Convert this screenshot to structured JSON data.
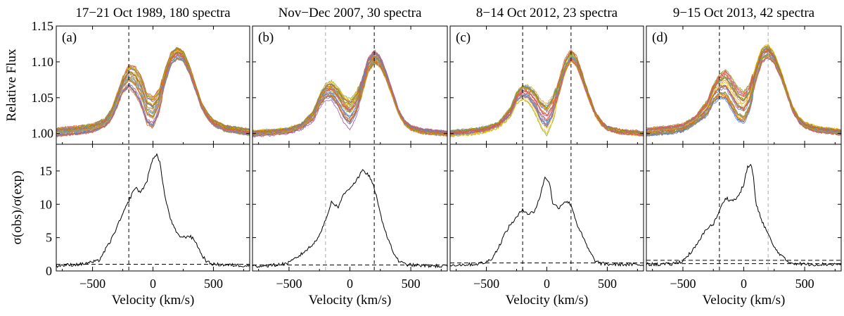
{
  "chart_data": {
    "type": "line",
    "figure": "Multi-epoch line profiles and variability ratio",
    "ylabel_top": "Relative Flux",
    "ylabel_bottom": "σ(obs)/σ(exp)",
    "xlabel": "Velocity (km/s)",
    "xlim": [
      -800,
      800
    ],
    "ylim_top": [
      0.985,
      1.15
    ],
    "ylim_bottom": [
      0,
      19
    ],
    "xticks": [
      -500,
      0,
      500
    ],
    "xtick_labels": [
      "−500",
      "0",
      "500"
    ],
    "yticks_top": [
      1.0,
      1.05,
      1.1,
      1.15
    ],
    "yticks_top_labels": [
      "1.00",
      "1.05",
      "1.10",
      "1.15"
    ],
    "yticks_bottom": [
      0,
      5,
      10,
      15
    ],
    "yticks_bottom_labels": [
      "0",
      "5",
      "10",
      "15"
    ],
    "marker_velocities": [
      -200,
      200
    ],
    "panels": [
      {
        "label": "(a)",
        "title": "17−21 Oct 1989, 180 spectra",
        "n_overplot": 30,
        "flux_mean": {
          "v": [
            -800,
            -600,
            -500,
            -400,
            -350,
            -300,
            -250,
            -200,
            -150,
            -100,
            -50,
            0,
            50,
            100,
            150,
            200,
            250,
            300,
            350,
            400,
            450,
            500,
            600,
            800
          ],
          "f": [
            1.002,
            1.005,
            1.008,
            1.015,
            1.025,
            1.045,
            1.068,
            1.08,
            1.075,
            1.06,
            1.035,
            1.03,
            1.045,
            1.08,
            1.105,
            1.112,
            1.108,
            1.09,
            1.065,
            1.04,
            1.025,
            1.015,
            1.007,
            1.002
          ]
        },
        "flux_spread": {
          "v": [
            -400,
            -250,
            -150,
            -50,
            0,
            50,
            150,
            200,
            300,
            400
          ],
          "s": [
            0.004,
            0.008,
            0.014,
            0.016,
            0.016,
            0.012,
            0.009,
            0.008,
            0.006,
            0.004
          ]
        },
        "sigma": {
          "v": [
            -800,
            -600,
            -450,
            -400,
            -350,
            -300,
            -250,
            -200,
            -150,
            -100,
            -50,
            0,
            30,
            60,
            100,
            150,
            200,
            250,
            300,
            350,
            400,
            450,
            500,
            600,
            800
          ],
          "r": [
            0.8,
            1.0,
            1.5,
            3.0,
            4.5,
            6.5,
            8.5,
            10.5,
            12.5,
            11.8,
            13.5,
            17.0,
            17.5,
            16.0,
            11.0,
            7.5,
            5.5,
            5.0,
            5.3,
            4.5,
            2.5,
            1.3,
            1.0,
            0.9,
            0.8
          ]
        },
        "ref_line": 1.0,
        "markers": [
          {
            "v": -200,
            "style": "dark",
            "top": true,
            "bottom": true
          }
        ]
      },
      {
        "label": "(b)",
        "title": "Nov−Dec 2007, 30 spectra",
        "n_overplot": 30,
        "flux_mean": {
          "v": [
            -800,
            -600,
            -500,
            -400,
            -300,
            -250,
            -200,
            -150,
            -100,
            -50,
            0,
            50,
            100,
            150,
            200,
            250,
            300,
            350,
            400,
            450,
            500,
            600,
            800
          ],
          "f": [
            1.0,
            1.002,
            1.004,
            1.01,
            1.025,
            1.045,
            1.058,
            1.06,
            1.05,
            1.035,
            1.028,
            1.04,
            1.065,
            1.095,
            1.107,
            1.1,
            1.08,
            1.055,
            1.03,
            1.015,
            1.008,
            1.003,
            1.0
          ]
        },
        "flux_spread": {
          "v": [
            -400,
            -250,
            -150,
            -50,
            0,
            50,
            150,
            200,
            300,
            400
          ],
          "s": [
            0.003,
            0.007,
            0.01,
            0.014,
            0.016,
            0.013,
            0.01,
            0.009,
            0.006,
            0.003
          ]
        },
        "sigma": {
          "v": [
            -800,
            -600,
            -500,
            -400,
            -300,
            -250,
            -200,
            -150,
            -100,
            -50,
            0,
            50,
            100,
            150,
            200,
            250,
            300,
            350,
            400,
            450,
            500,
            600,
            800
          ],
          "r": [
            0.7,
            0.9,
            1.2,
            2.5,
            4.0,
            5.5,
            7.5,
            10.5,
            9.5,
            11.5,
            12.5,
            13.5,
            15.0,
            14.5,
            12.5,
            8.5,
            5.5,
            3.0,
            1.5,
            1.0,
            0.9,
            0.8,
            0.7
          ]
        },
        "ref_line": 0.9,
        "markers": [
          {
            "v": -200,
            "style": "light",
            "top": true,
            "bottom": true
          },
          {
            "v": 200,
            "style": "dark",
            "top": true,
            "bottom": true
          }
        ]
      },
      {
        "label": "(c)",
        "title": "8−14 Oct 2012, 23 spectra",
        "n_overplot": 23,
        "flux_mean": {
          "v": [
            -800,
            -600,
            -500,
            -400,
            -300,
            -250,
            -200,
            -150,
            -100,
            -50,
            0,
            50,
            100,
            150,
            200,
            250,
            300,
            350,
            400,
            450,
            500,
            600,
            800
          ],
          "f": [
            1.0,
            1.003,
            1.006,
            1.012,
            1.03,
            1.05,
            1.058,
            1.055,
            1.045,
            1.028,
            1.02,
            1.035,
            1.065,
            1.095,
            1.11,
            1.1,
            1.075,
            1.05,
            1.028,
            1.015,
            1.008,
            1.003,
            1.0
          ]
        },
        "flux_spread": {
          "v": [
            -400,
            -250,
            -150,
            -50,
            0,
            50,
            150,
            200,
            300,
            400
          ],
          "s": [
            0.003,
            0.006,
            0.009,
            0.014,
            0.016,
            0.013,
            0.01,
            0.009,
            0.006,
            0.003
          ]
        },
        "sigma": {
          "v": [
            -800,
            -600,
            -500,
            -450,
            -400,
            -350,
            -300,
            -250,
            -200,
            -150,
            -100,
            -50,
            -20,
            20,
            50,
            100,
            150,
            200,
            250,
            300,
            350,
            400,
            450,
            500,
            600,
            800
          ],
          "r": [
            0.9,
            1.0,
            1.3,
            2.0,
            3.5,
            5.5,
            7.0,
            8.0,
            9.3,
            8.5,
            9.0,
            11.5,
            14.0,
            13.5,
            10.0,
            9.5,
            10.5,
            10.0,
            7.0,
            5.0,
            3.0,
            1.5,
            1.1,
            1.0,
            1.0,
            0.9
          ]
        },
        "ref_line": 1.2,
        "markers": [
          {
            "v": -200,
            "style": "dark",
            "top": true,
            "bottom": true
          },
          {
            "v": 200,
            "style": "dark",
            "top": true,
            "bottom": true
          }
        ]
      },
      {
        "label": "(d)",
        "title": "9−15 Oct 2013, 42 spectra",
        "n_overplot": 30,
        "flux_mean": {
          "v": [
            -800,
            -600,
            -500,
            -400,
            -300,
            -250,
            -200,
            -150,
            -100,
            -50,
            0,
            50,
            100,
            150,
            200,
            250,
            300,
            350,
            400,
            450,
            500,
            600,
            800
          ],
          "f": [
            1.002,
            1.005,
            1.008,
            1.018,
            1.035,
            1.055,
            1.065,
            1.068,
            1.055,
            1.04,
            1.035,
            1.05,
            1.085,
            1.11,
            1.115,
            1.105,
            1.085,
            1.06,
            1.035,
            1.02,
            1.012,
            1.006,
            1.002
          ]
        },
        "flux_spread": {
          "v": [
            -400,
            -250,
            -150,
            -50,
            0,
            50,
            150,
            200,
            300,
            400
          ],
          "s": [
            0.004,
            0.01,
            0.016,
            0.018,
            0.017,
            0.014,
            0.011,
            0.01,
            0.006,
            0.004
          ]
        },
        "sigma": {
          "v": [
            -800,
            -600,
            -500,
            -400,
            -300,
            -250,
            -200,
            -150,
            -100,
            -50,
            0,
            30,
            60,
            80,
            100,
            150,
            200,
            250,
            300,
            350,
            400,
            450,
            500,
            600,
            800
          ],
          "r": [
            1.0,
            1.0,
            1.5,
            3.5,
            6.5,
            7.0,
            9.0,
            11.0,
            10.5,
            11.0,
            13.0,
            15.5,
            16.0,
            14.0,
            10.0,
            7.5,
            5.5,
            3.5,
            2.5,
            1.5,
            1.2,
            1.1,
            1.0,
            1.0,
            1.0
          ],
          "r_alt_tail": 1.6
        },
        "ref_line": 1.1,
        "ref_line_2": 1.6,
        "markers": [
          {
            "v": -200,
            "style": "dark",
            "top": true,
            "bottom": true
          },
          {
            "v": 200,
            "style": "light",
            "top": true,
            "bottom": true
          }
        ]
      }
    ]
  }
}
